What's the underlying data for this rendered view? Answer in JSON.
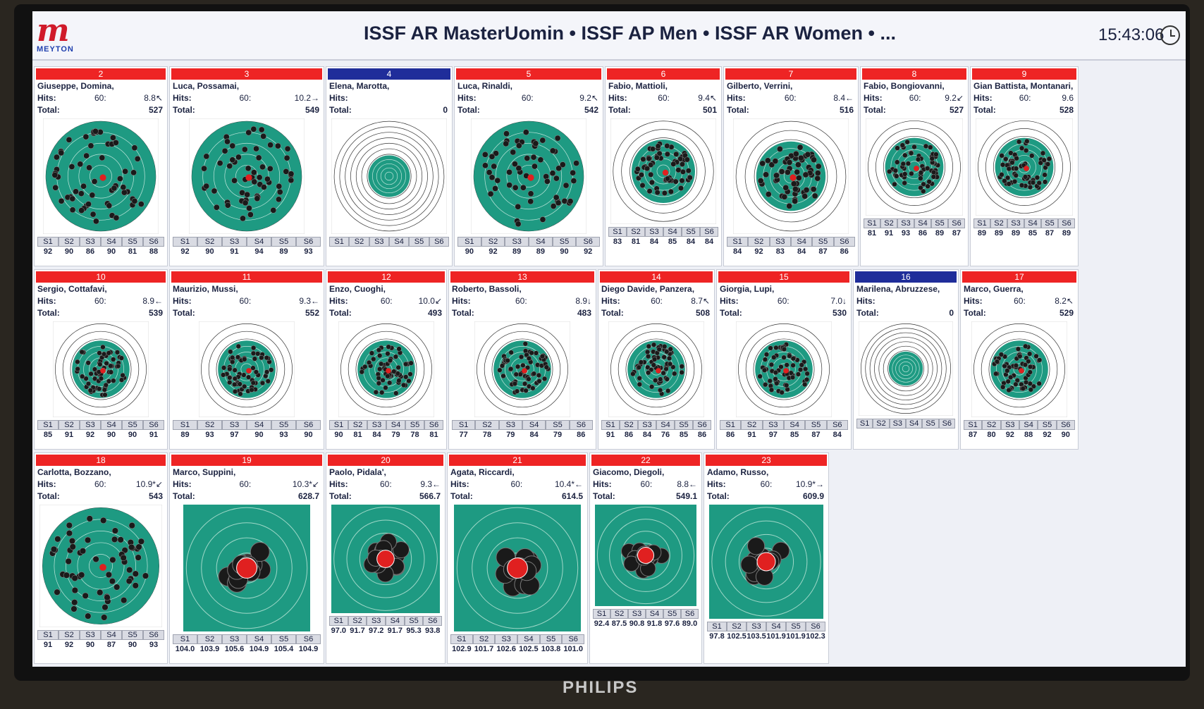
{
  "header": {
    "logo_letter": "m",
    "logo_text": "MEYTON",
    "title": "ISSF AR MasterUomin • ISSF AP Men • ISSF AR Women • ...",
    "clock": "15:43:06"
  },
  "series_labels": [
    "S1",
    "S2",
    "S3",
    "S4",
    "S5",
    "S6"
  ],
  "hits_label": "Hits:",
  "total_label": "Total:",
  "brand": "PHILIPS",
  "colors": {
    "lane_bar_red": "#ee2424",
    "lane_bar_blue": "#1f2d9a",
    "target_green": "#1e9a82",
    "shot_black": "#1a1a1a",
    "last_shot_red": "#e02020"
  },
  "lanes": [
    {
      "num": "2",
      "color": "red",
      "name": "Giuseppe, Domina,",
      "hits": "60:",
      "last": "8.8↖",
      "total": "527",
      "series": [
        "92",
        "90",
        "86",
        "90",
        "81",
        "88"
      ],
      "target": "rifle"
    },
    {
      "num": "3",
      "color": "red",
      "name": "Luca, Possamai,",
      "hits": "60:",
      "last": "10.2→",
      "total": "549",
      "series": [
        "92",
        "90",
        "91",
        "94",
        "89",
        "93"
      ],
      "target": "rifle"
    },
    {
      "num": "4",
      "color": "blue",
      "name": "Elena, Marotta,",
      "hits": "",
      "last": "",
      "total": "0",
      "series": [
        "",
        "",
        "",
        "",
        "",
        ""
      ],
      "target": "empty"
    },
    {
      "num": "5",
      "color": "red",
      "name": "Luca, Rinaldi,",
      "hits": "60:",
      "last": "9.2↖",
      "total": "542",
      "series": [
        "90",
        "92",
        "89",
        "89",
        "90",
        "92"
      ],
      "target": "rifle"
    },
    {
      "num": "6",
      "color": "red",
      "name": "Fabio, Mattioli,",
      "hits": "60:",
      "last": "9.4↖",
      "total": "501",
      "series": [
        "83",
        "81",
        "84",
        "85",
        "84",
        "84"
      ],
      "target": "pistol"
    },
    {
      "num": "7",
      "color": "red",
      "name": "Gilberto, Verrini,",
      "hits": "60:",
      "last": "8.4←",
      "total": "516",
      "series": [
        "84",
        "92",
        "83",
        "84",
        "87",
        "86"
      ],
      "target": "pistol"
    },
    {
      "num": "8",
      "color": "red",
      "name": "Fabio, Bongiovanni,",
      "hits": "60:",
      "last": "9.2↙",
      "total": "527",
      "series": [
        "81",
        "91",
        "93",
        "86",
        "89",
        "87"
      ],
      "target": "pistol"
    },
    {
      "num": "9",
      "color": "red",
      "name": "Gian Battista, Montanari,",
      "hits": "60:",
      "last": "9.6",
      "total": "528",
      "series": [
        "89",
        "89",
        "89",
        "85",
        "87",
        "89"
      ],
      "target": "pistol"
    },
    {
      "num": "10",
      "color": "red",
      "name": "Sergio, Cottafavi,",
      "hits": "60:",
      "last": "8.9←",
      "total": "539",
      "series": [
        "85",
        "91",
        "92",
        "90",
        "90",
        "91"
      ],
      "target": "pistol"
    },
    {
      "num": "11",
      "color": "red",
      "name": "Maurizio, Mussi,",
      "hits": "60:",
      "last": "9.3←",
      "total": "552",
      "series": [
        "89",
        "93",
        "97",
        "90",
        "93",
        "90"
      ],
      "target": "pistol"
    },
    {
      "num": "12",
      "color": "red",
      "name": "Enzo, Cuoghi,",
      "hits": "60:",
      "last": "10.0↙",
      "total": "493",
      "series": [
        "90",
        "81",
        "84",
        "79",
        "78",
        "81"
      ],
      "target": "pistol"
    },
    {
      "num": "13",
      "color": "red",
      "name": "Roberto, Bassoli,",
      "hits": "60:",
      "last": "8.9↓",
      "total": "483",
      "series": [
        "77",
        "78",
        "79",
        "84",
        "79",
        "86"
      ],
      "target": "pistol"
    },
    {
      "num": "14",
      "color": "red",
      "name": "Diego Davide, Panzera,",
      "hits": "60:",
      "last": "8.7↖",
      "total": "508",
      "series": [
        "91",
        "86",
        "84",
        "76",
        "85",
        "86"
      ],
      "target": "pistol"
    },
    {
      "num": "15",
      "color": "red",
      "name": "Giorgia, Lupi,",
      "hits": "60:",
      "last": "7.0↓",
      "total": "530",
      "series": [
        "86",
        "91",
        "97",
        "85",
        "87",
        "84"
      ],
      "target": "pistol"
    },
    {
      "num": "16",
      "color": "blue",
      "name": "Marilena, Abruzzese,",
      "hits": "",
      "last": "",
      "total": "0",
      "series": [
        "",
        "",
        "",
        "",
        "",
        ""
      ],
      "target": "empty"
    },
    {
      "num": "17",
      "color": "red",
      "name": "Marco, Guerra,",
      "hits": "60:",
      "last": "8.2↖",
      "total": "529",
      "series": [
        "87",
        "80",
        "92",
        "88",
        "92",
        "90"
      ],
      "target": "pistol"
    },
    {
      "num": "18",
      "color": "red",
      "name": "Carlotta, Bozzano,",
      "hits": "60:",
      "last": "10.9*↙",
      "total": "543",
      "series": [
        "91",
        "92",
        "90",
        "87",
        "90",
        "93"
      ],
      "target": "rifle"
    },
    {
      "num": "19",
      "color": "red",
      "name": "Marco, Suppini,",
      "hits": "60:",
      "last": "10.3*↙",
      "total": "628.7",
      "series": [
        "104.0",
        "103.9",
        "105.6",
        "104.9",
        "105.4",
        "104.9"
      ],
      "target": "decimal"
    },
    {
      "num": "20",
      "color": "red",
      "name": "Paolo, Pidala',",
      "hits": "60:",
      "last": "9.3←",
      "total": "566.7",
      "series": [
        "97.0",
        "91.7",
        "97.2",
        "91.7",
        "95.3",
        "93.8"
      ],
      "target": "decimal"
    },
    {
      "num": "21",
      "color": "red",
      "name": "Agata, Riccardi,",
      "hits": "60:",
      "last": "10.4*←",
      "total": "614.5",
      "series": [
        "102.9",
        "101.7",
        "102.6",
        "102.5",
        "103.8",
        "101.0"
      ],
      "target": "decimal"
    },
    {
      "num": "22",
      "color": "red",
      "name": "Giacomo, Diegoli,",
      "hits": "60:",
      "last": "8.8←",
      "total": "549.1",
      "series": [
        "92.4",
        "87.5",
        "90.8",
        "91.8",
        "97.6",
        "89.0"
      ],
      "target": "decimal"
    },
    {
      "num": "23",
      "color": "red",
      "name": "Adamo, Russo,",
      "hits": "60:",
      "last": "10.9*→",
      "total": "609.9",
      "series": [
        "97.8",
        "102.5",
        "103.5",
        "101.9",
        "101.9",
        "102.3"
      ],
      "target": "decimal"
    }
  ]
}
